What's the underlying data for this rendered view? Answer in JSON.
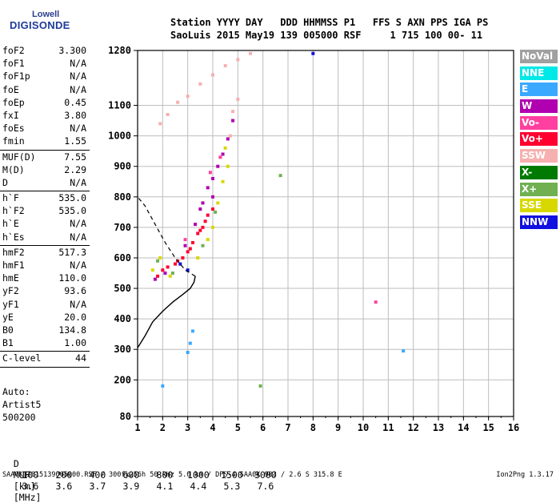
{
  "logo": {
    "top": "Lowell",
    "bottom": "DIGISONDE"
  },
  "header": {
    "line1": "Station YYYY DAY   DDD HHMMSS P1   FFS S AXN PPS IGA PS",
    "line2": "SaoLuis 2015 May19 139 005000 RSF     1 715 100 00- 11"
  },
  "params": [
    {
      "label": "foF2",
      "value": "3.300"
    },
    {
      "label": "foF1",
      "value": "N/A"
    },
    {
      "label": "foF1p",
      "value": "N/A"
    },
    {
      "label": "foE",
      "value": "N/A"
    },
    {
      "label": "foEp",
      "value": "0.45"
    },
    {
      "label": "fxI",
      "value": "3.80"
    },
    {
      "label": "foEs",
      "value": "N/A"
    },
    {
      "label": "fmin",
      "value": "1.55"
    },
    {
      "divider": true
    },
    {
      "label": "MUF(D)",
      "value": "7.55"
    },
    {
      "label": "M(D)",
      "value": "2.29"
    },
    {
      "label": "D",
      "value": "N/A"
    },
    {
      "divider": true
    },
    {
      "label": "h`F",
      "value": "535.0"
    },
    {
      "label": "h`F2",
      "value": "535.0"
    },
    {
      "label": "h`E",
      "value": "N/A"
    },
    {
      "label": "h`Es",
      "value": "N/A"
    },
    {
      "divider": true
    },
    {
      "label": "hmF2",
      "value": "517.3"
    },
    {
      "label": "hmF1",
      "value": "N/A"
    },
    {
      "label": "hmE",
      "value": "110.0"
    },
    {
      "label": "yF2",
      "value": "93.6"
    },
    {
      "label": "yF1",
      "value": "N/A"
    },
    {
      "label": "yE",
      "value": "20.0"
    },
    {
      "label": "B0",
      "value": "134.8"
    },
    {
      "label": "B1",
      "value": "1.00"
    },
    {
      "divider": true
    },
    {
      "label": "C-level",
      "value": "44"
    },
    {
      "divider": true
    }
  ],
  "auto": {
    "line1": "Auto:",
    "line2": "Artist5",
    "line3": "500200"
  },
  "legend": [
    {
      "label": "NoVal",
      "color": "#a0a0a0"
    },
    {
      "label": "NNE",
      "color": "#00e8e8"
    },
    {
      "label": "E",
      "color": "#3aa8ff"
    },
    {
      "label": "W",
      "color": "#b000b0"
    },
    {
      "label": "Vo-",
      "color": "#ff40a0"
    },
    {
      "label": "Vo+",
      "color": "#ff0030"
    },
    {
      "label": "SSW",
      "color": "#f6b0b0"
    },
    {
      "label": "X-",
      "color": "#007a00"
    },
    {
      "label": "X+",
      "color": "#70b050"
    },
    {
      "label": "SSE",
      "color": "#d8d800"
    },
    {
      "label": "NNW",
      "color": "#1010e0"
    }
  ],
  "muf_table": {
    "d_label": "D",
    "d_values": [
      "100",
      "200",
      "400",
      "600",
      "800",
      "1000",
      "1500",
      "3000"
    ],
    "d_unit": "[km]",
    "muf_label": "MUF",
    "muf_values": [
      "3.6",
      "3.6",
      "3.7",
      "3.9",
      "4.1",
      "4.4",
      "5.3",
      "7.6"
    ],
    "muf_unit": "[MHz]"
  },
  "footer": "SAA0K_2015139005000.RSF / 300fx256h 50 kHz 5.0 km / DPS-4 SAA0K 903 / 2.6 S 315.8 E",
  "version": "Ion2Png 1.3.17",
  "chart_data": {
    "type": "scatter",
    "title": "",
    "xlabel": "",
    "ylabel": "",
    "xlim": [
      1,
      16
    ],
    "ylim": [
      80,
      1280
    ],
    "x_ticks": [
      1,
      2,
      3,
      4,
      5,
      6,
      7,
      8,
      9,
      10,
      11,
      12,
      13,
      14,
      15,
      16
    ],
    "y_ticks": [
      80,
      200,
      300,
      400,
      500,
      600,
      700,
      800,
      900,
      1000,
      1100,
      1280
    ],
    "grid": true,
    "legend_position": "right",
    "series": [
      {
        "name": "Vo+",
        "color": "#ff0030",
        "points": [
          [
            1.8,
            540
          ],
          [
            2.0,
            560
          ],
          [
            2.2,
            570
          ],
          [
            2.5,
            580
          ],
          [
            2.8,
            600
          ],
          [
            3.0,
            620
          ],
          [
            3.2,
            650
          ],
          [
            3.4,
            680
          ],
          [
            3.6,
            700
          ],
          [
            3.7,
            720
          ],
          [
            3.8,
            740
          ],
          [
            4.0,
            760
          ],
          [
            2.6,
            590
          ],
          [
            3.1,
            630
          ],
          [
            3.5,
            690
          ]
        ]
      },
      {
        "name": "W",
        "color": "#b000b0",
        "points": [
          [
            1.7,
            530
          ],
          [
            2.1,
            550
          ],
          [
            2.9,
            640
          ],
          [
            3.3,
            710
          ],
          [
            3.6,
            780
          ],
          [
            3.8,
            830
          ],
          [
            4.0,
            860
          ],
          [
            4.2,
            900
          ],
          [
            4.4,
            940
          ],
          [
            4.6,
            990
          ],
          [
            4.8,
            1050
          ],
          [
            4.0,
            800
          ],
          [
            3.5,
            760
          ]
        ]
      },
      {
        "name": "SSE",
        "color": "#d8d800",
        "points": [
          [
            1.6,
            560
          ],
          [
            1.9,
            600
          ],
          [
            3.4,
            600
          ],
          [
            3.8,
            660
          ],
          [
            4.0,
            700
          ],
          [
            4.2,
            780
          ],
          [
            4.4,
            850
          ],
          [
            4.6,
            900
          ],
          [
            4.5,
            960
          ],
          [
            2.3,
            540
          ]
        ]
      },
      {
        "name": "SSW",
        "color": "#f6b0b0",
        "points": [
          [
            1.9,
            1040
          ],
          [
            2.2,
            1070
          ],
          [
            2.6,
            1110
          ],
          [
            3.0,
            1130
          ],
          [
            3.5,
            1170
          ],
          [
            4.0,
            1200
          ],
          [
            4.5,
            1230
          ],
          [
            5.0,
            1250
          ],
          [
            5.5,
            1270
          ],
          [
            4.8,
            1080
          ],
          [
            5.0,
            1120
          ],
          [
            4.7,
            1000
          ]
        ]
      },
      {
        "name": "X+",
        "color": "#70b050",
        "points": [
          [
            1.8,
            590
          ],
          [
            2.4,
            550
          ],
          [
            3.6,
            640
          ],
          [
            4.1,
            750
          ],
          [
            6.7,
            870
          ],
          [
            5.9,
            180
          ]
        ]
      },
      {
        "name": "E",
        "color": "#3aa8ff",
        "points": [
          [
            3.1,
            320
          ],
          [
            3.2,
            360
          ],
          [
            3.0,
            290
          ],
          [
            11.6,
            295
          ],
          [
            2.0,
            180
          ]
        ]
      },
      {
        "name": "NNW",
        "color": "#1010e0",
        "points": [
          [
            8.0,
            1270
          ],
          [
            3.0,
            560
          ],
          [
            2.7,
            580
          ]
        ]
      },
      {
        "name": "Vo-",
        "color": "#ff40a0",
        "points": [
          [
            2.9,
            660
          ],
          [
            3.9,
            880
          ],
          [
            4.3,
            930
          ],
          [
            10.5,
            455
          ]
        ]
      }
    ],
    "trace_profile": [
      [
        1,
        305
      ],
      [
        1.3,
        345
      ],
      [
        1.6,
        390
      ],
      [
        2.0,
        425
      ],
      [
        2.4,
        455
      ],
      [
        2.8,
        480
      ],
      [
        3.1,
        500
      ],
      [
        3.25,
        520
      ],
      [
        3.3,
        540
      ]
    ],
    "dashed_profile": [
      [
        3.3,
        540
      ],
      [
        2.9,
        560
      ],
      [
        2.5,
        600
      ],
      [
        2.1,
        650
      ],
      [
        1.7,
        710
      ],
      [
        1.3,
        770
      ],
      [
        1.0,
        800
      ]
    ]
  }
}
